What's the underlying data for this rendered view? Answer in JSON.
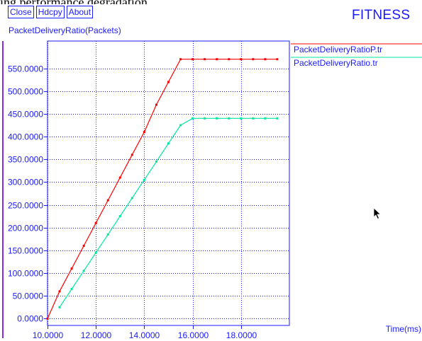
{
  "top_text": "ing performance degradation...",
  "toolbar": {
    "close_label": "Close",
    "hdcpy_label": "Hdcpy",
    "about_label": "About"
  },
  "app_title": "FITNESS",
  "chart_title": "PacketDeliveryRatio(Packets)",
  "colors": {
    "ui_blue": "#1a1aff",
    "grid": "#1a1aff",
    "series_p": "#ff0000",
    "series_r": "#00e8a0",
    "left_bar": "#8a2be2"
  },
  "chart_data": {
    "type": "line",
    "title": "PacketDeliveryRatio(Packets)",
    "xlabel": "Time(ms)",
    "ylabel": "",
    "xlim": [
      10.0,
      20.0
    ],
    "ylim": [
      -15,
      610
    ],
    "grid": true,
    "legend_position": "right",
    "x_ticks": [
      10,
      12,
      14,
      16,
      18
    ],
    "x_tick_labels": [
      "10.0000",
      "12.0000",
      "14.0000",
      "16.0000",
      "18.0000"
    ],
    "y_ticks": [
      0,
      50,
      100,
      150,
      200,
      250,
      300,
      350,
      400,
      450,
      500,
      550
    ],
    "y_tick_labels": [
      "0.0000",
      "50.0000",
      "100.0000",
      "150.0000",
      "200.0000",
      "250.0000",
      "300.0000",
      "350.0000",
      "400.0000",
      "450.0000",
      "500.0000",
      "550.0000"
    ],
    "series": [
      {
        "name": "PacketDeliveryRatioP.tr",
        "color": "#ff0000",
        "x": [
          10.0,
          10.5,
          11.0,
          11.5,
          12.0,
          12.5,
          13.0,
          13.5,
          14.0,
          14.5,
          15.0,
          15.5,
          16.0,
          16.5,
          17.0,
          17.5,
          18.0,
          18.5,
          19.0,
          19.5
        ],
        "y": [
          0,
          60,
          110,
          160,
          210,
          260,
          310,
          360,
          410,
          470,
          520,
          570,
          570,
          570,
          570,
          570,
          570,
          570,
          570,
          570
        ]
      },
      {
        "name": "PacketDeliveryRatio.tr",
        "color": "#00e8a0",
        "x": [
          10.5,
          11.0,
          11.5,
          12.0,
          12.5,
          13.0,
          13.5,
          14.0,
          14.5,
          15.0,
          15.5,
          16.0,
          16.5,
          17.0,
          17.5,
          18.0,
          18.5,
          19.0,
          19.5
        ],
        "y": [
          25,
          65,
          105,
          145,
          185,
          225,
          265,
          305,
          345,
          385,
          425,
          440,
          440,
          440,
          440,
          440,
          440,
          440,
          440
        ]
      }
    ]
  }
}
